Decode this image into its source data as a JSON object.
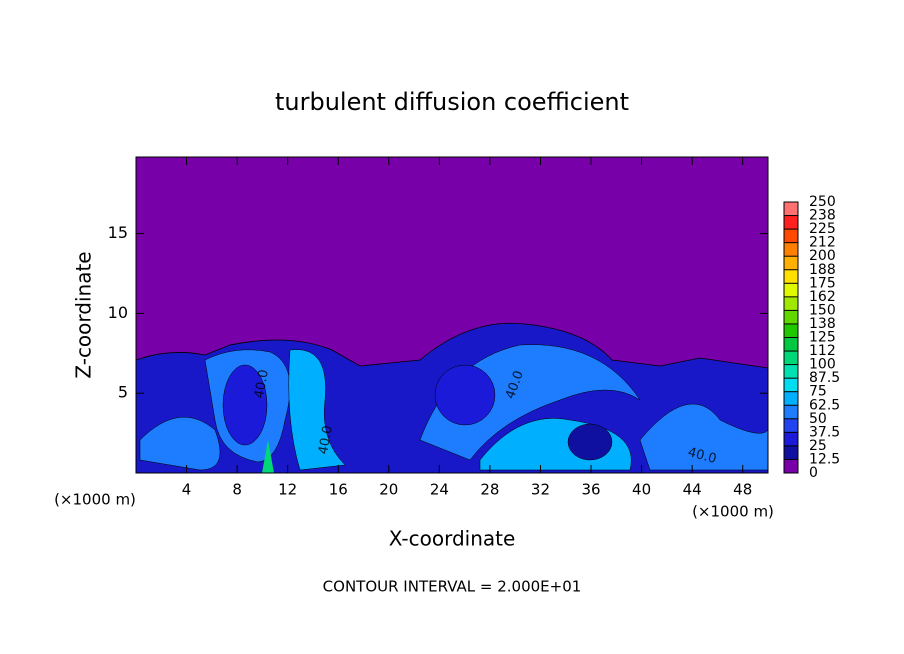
{
  "chart_data": {
    "type": "contour",
    "title": "turbulent diffusion coefficient",
    "x_label": "X-coordinate",
    "y_label": "Z-coordinate",
    "x_unit": "(×1000 m)",
    "y_unit": "(×1000 m)",
    "footer": "CONTOUR INTERVAL = 2.000E+01",
    "xlim": [
      0,
      50
    ],
    "xticks": [
      4,
      8,
      12,
      16,
      20,
      24,
      28,
      32,
      36,
      40,
      44,
      48
    ],
    "ylim": [
      0,
      19.8
    ],
    "yticks": [
      5,
      10,
      15
    ],
    "contour_labels": [
      "40.0",
      "40.0",
      "40.0",
      "40.0"
    ],
    "colorbar": {
      "clim": [
        0,
        250
      ],
      "ticks": [
        0,
        12.5,
        25,
        37.5,
        50,
        62.5,
        75,
        87.5,
        100,
        {
          "value": 112.5,
          "label": "112"
        },
        125,
        {
          "value": 137.5,
          "label": "138"
        },
        150,
        {
          "value": 162.5,
          "label": "162"
        },
        175,
        {
          "value": 187.5,
          "label": "188"
        },
        200,
        {
          "value": 212.5,
          "label": "212"
        },
        225,
        {
          "value": 237.5,
          "label": "238"
        },
        250
      ],
      "colors": [
        "#7800a8",
        "#1010a0",
        "#1a1ad8",
        "#2244f0",
        "#1e7cff",
        "#00b0ff",
        "#00dcf0",
        "#00e0b0",
        "#00d878",
        "#00c840",
        "#20c800",
        "#60d800",
        "#a0e800",
        "#e0f800",
        "#ffe000",
        "#ffb000",
        "#ff8000",
        "#ff4800",
        "#ff2020",
        "#ff7070"
      ]
    }
  }
}
